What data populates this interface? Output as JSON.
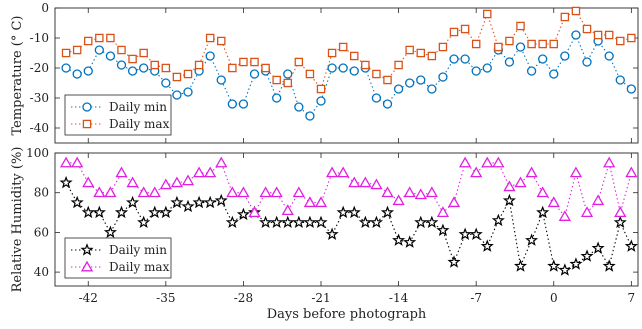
{
  "chart_data": [
    {
      "type": "line",
      "ylabel": "Temperature (° C)",
      "ylim": [
        -45,
        0
      ],
      "yticks": [
        0,
        -10,
        -20,
        -30,
        -40
      ],
      "legend_position": "bottom-left",
      "colors": {
        "min": "#0072BD",
        "max": "#D95319"
      },
      "x": [
        -44,
        -43,
        -42,
        -41,
        -40,
        -39,
        -38,
        -37,
        -36,
        -35,
        -34,
        -33,
        -32,
        -31,
        -30,
        -29,
        -28,
        -27,
        -26,
        -25,
        -24,
        -23,
        -22,
        -21,
        -20,
        -19,
        -18,
        -17,
        -16,
        -15,
        -14,
        -13,
        -12,
        -11,
        -10,
        -9,
        -8,
        -7,
        -6,
        -5,
        -4,
        -3,
        -2,
        -1,
        0,
        1,
        2,
        3,
        4,
        5,
        6,
        7
      ],
      "series": [
        {
          "name": "Daily min",
          "marker": "circle",
          "values": [
            -20,
            -22,
            -21,
            -14,
            -16,
            -19,
            -21,
            -20,
            -21,
            -25,
            -29,
            -28,
            -21,
            -16,
            -24,
            -32,
            -32,
            -22,
            -21,
            -30,
            -22,
            -33,
            -36,
            -31,
            -20,
            -20,
            -21,
            -20,
            -30,
            -32,
            -27,
            -25,
            -24,
            -27,
            -23,
            -17,
            -17,
            -21,
            -20,
            -14,
            -18,
            -13,
            -21,
            -17,
            -22,
            -16,
            -9,
            -18,
            -11,
            -16,
            -24,
            -27
          ]
        },
        {
          "name": "Daily max",
          "marker": "square",
          "values": [
            -15,
            -14,
            -11,
            -10,
            -10,
            -14,
            -17,
            -15,
            -19,
            -20,
            -23,
            -22,
            -19,
            -10,
            -11,
            -20,
            -18,
            -18,
            -20,
            -24,
            -25,
            -18,
            -22,
            -27,
            -15,
            -13,
            -16,
            -19,
            -22,
            -24,
            -19,
            -14,
            -15,
            -16,
            -13,
            -8,
            -7,
            -12,
            -2,
            -13,
            -11,
            -6,
            -12,
            -12,
            -12,
            -3,
            -1,
            -7,
            -9,
            -9,
            -11,
            -10
          ]
        }
      ]
    },
    {
      "type": "line",
      "ylabel": "Relative Humidity (%)",
      "xlabel": "Days before photograph",
      "ylim": [
        33,
        100
      ],
      "yticks": [
        40,
        60,
        80,
        100
      ],
      "xticks": [
        -42,
        -35,
        -28,
        -21,
        -14,
        -7,
        0,
        7
      ],
      "legend_position": "bottom-left",
      "colors": {
        "min": "#000000",
        "max": "#E020E0"
      },
      "x": [
        -44,
        -43,
        -42,
        -41,
        -40,
        -39,
        -38,
        -37,
        -36,
        -35,
        -34,
        -33,
        -32,
        -31,
        -30,
        -29,
        -28,
        -27,
        -26,
        -25,
        -24,
        -23,
        -22,
        -21,
        -20,
        -19,
        -18,
        -17,
        -16,
        -15,
        -14,
        -13,
        -12,
        -11,
        -10,
        -9,
        -8,
        -7,
        -6,
        -5,
        -4,
        -3,
        -2,
        -1,
        0,
        1,
        2,
        3,
        4,
        5,
        6,
        7
      ],
      "series": [
        {
          "name": "Daily min",
          "marker": "star",
          "values": [
            85,
            75,
            70,
            70,
            60,
            70,
            75,
            65,
            70,
            70,
            75,
            73,
            75,
            75,
            76,
            65,
            69,
            70,
            65,
            65,
            65,
            65,
            65,
            65,
            59,
            70,
            70,
            65,
            65,
            70,
            56,
            55,
            65,
            65,
            61,
            45,
            59,
            59,
            53,
            66,
            76,
            43,
            56,
            70,
            43,
            41,
            44,
            48,
            52,
            43,
            65,
            53
          ]
        },
        {
          "name": "Daily max",
          "marker": "triangle",
          "values": [
            95,
            95,
            85,
            80,
            80,
            90,
            85,
            80,
            80,
            84,
            85,
            86,
            90,
            90,
            95,
            80,
            80,
            70,
            80,
            80,
            71,
            80,
            75,
            75,
            90,
            90,
            85,
            85,
            84,
            80,
            76,
            80,
            79,
            80,
            70,
            75,
            95,
            90,
            95,
            95,
            83,
            85,
            90,
            80,
            75,
            68,
            90,
            70,
            76,
            95,
            70,
            90
          ]
        }
      ]
    }
  ]
}
